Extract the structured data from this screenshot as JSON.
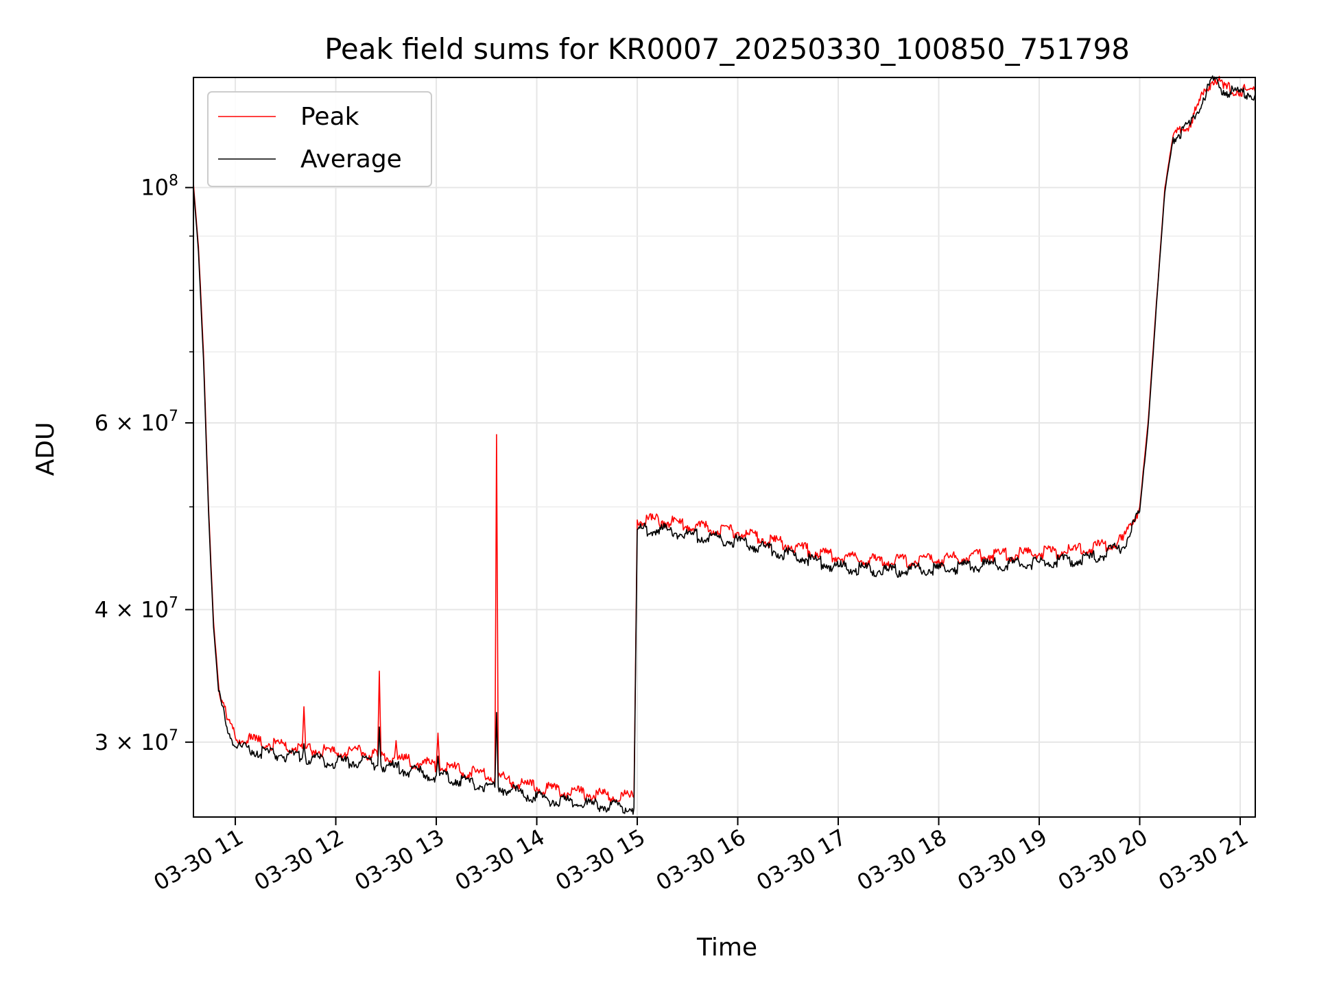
{
  "chart_data": {
    "type": "line",
    "title": "Peak field sums for KR0007_20250330_100850_751798",
    "xlabel": "Time",
    "ylabel": "ADU",
    "yscale": "log",
    "grid": true,
    "legend_position": "top-left",
    "xlim": [
      "03-30 10:35",
      "03-30 21:09"
    ],
    "ylim": [
      25500000,
      127000000
    ],
    "x_ticks": [
      "03-30 11",
      "03-30 12",
      "03-30 13",
      "03-30 14",
      "03-30 15",
      "03-30 16",
      "03-30 17",
      "03-30 18",
      "03-30 19",
      "03-30 20",
      "03-30 21"
    ],
    "y_ticks": [
      {
        "value": 30000000,
        "label": "3 × 10⁷",
        "mantissa": "3",
        "exp": "7"
      },
      {
        "value": 40000000,
        "label": "4 × 10⁷",
        "mantissa": "4",
        "exp": "7"
      },
      {
        "value": 60000000,
        "label": "6 × 10⁷",
        "mantissa": "6",
        "exp": "7"
      },
      {
        "value": 100000000,
        "label": "10⁸",
        "mantissa": "",
        "exp": "8"
      }
    ],
    "y_minor_ticks": [
      50000000,
      70000000,
      80000000,
      90000000
    ],
    "series": [
      {
        "name": "Peak",
        "color": "#ff0000",
        "points": [
          [
            "03-30 10:35",
            101000000
          ],
          [
            "03-30 10:38",
            88000000
          ],
          [
            "03-30 10:41",
            70000000
          ],
          [
            "03-30 10:44",
            50000000
          ],
          [
            "03-30 10:47",
            39000000
          ],
          [
            "03-30 10:50",
            34000000
          ],
          [
            "03-30 10:55",
            31500000
          ],
          [
            "03-30 11:00",
            30300000
          ],
          [
            "03-30 11:20",
            29900000
          ],
          [
            "03-30 11:40",
            29600000
          ],
          [
            "03-30 11:41",
            32400000
          ],
          [
            "03-30 11:42",
            29600000
          ],
          [
            "03-30 12:00",
            29300000
          ],
          [
            "03-30 12:15",
            29400000
          ],
          [
            "03-30 12:25",
            29100000
          ],
          [
            "03-30 12:26",
            35000000
          ],
          [
            "03-30 12:27",
            29100000
          ],
          [
            "03-30 12:35",
            29000000
          ],
          [
            "03-30 12:36",
            30100000
          ],
          [
            "03-30 12:37",
            28900000
          ],
          [
            "03-30 13:00",
            28500000
          ],
          [
            "03-30 13:01",
            30600000
          ],
          [
            "03-30 13:02",
            28500000
          ],
          [
            "03-30 13:20",
            28100000
          ],
          [
            "03-30 13:35",
            27800000
          ],
          [
            "03-30 13:36",
            58500000
          ],
          [
            "03-30 13:37",
            27800000
          ],
          [
            "03-30 14:00",
            27200000
          ],
          [
            "03-30 14:30",
            26800000
          ],
          [
            "03-30 14:58",
            26600000
          ],
          [
            "03-30 15:00",
            48600000
          ],
          [
            "03-30 15:15",
            48500000
          ],
          [
            "03-30 15:30",
            48000000
          ],
          [
            "03-30 16:00",
            47300000
          ],
          [
            "03-30 16:30",
            46000000
          ],
          [
            "03-30 17:00",
            44800000
          ],
          [
            "03-30 17:30",
            44400000
          ],
          [
            "03-30 18:00",
            44600000
          ],
          [
            "03-30 18:30",
            45000000
          ],
          [
            "03-30 19:00",
            45200000
          ],
          [
            "03-30 19:30",
            45600000
          ],
          [
            "03-30 19:50",
            46500000
          ],
          [
            "03-30 20:00",
            50000000
          ],
          [
            "03-30 20:05",
            60000000
          ],
          [
            "03-30 20:10",
            78000000
          ],
          [
            "03-30 20:15",
            100000000
          ],
          [
            "03-30 20:20",
            112000000
          ],
          [
            "03-30 20:30",
            115000000
          ],
          [
            "03-30 20:40",
            124000000
          ],
          [
            "03-30 20:45",
            127000000
          ],
          [
            "03-30 20:50",
            124000000
          ],
          [
            "03-30 21:00",
            123500000
          ],
          [
            "03-30 21:09",
            123000000
          ]
        ]
      },
      {
        "name": "Average",
        "color": "#000000",
        "points": [
          [
            "03-30 10:35",
            100000000
          ],
          [
            "03-30 10:38",
            87000000
          ],
          [
            "03-30 10:41",
            69000000
          ],
          [
            "03-30 10:44",
            49500000
          ],
          [
            "03-30 10:47",
            38500000
          ],
          [
            "03-30 10:50",
            33500000
          ],
          [
            "03-30 10:55",
            31000000
          ],
          [
            "03-30 11:00",
            29700000
          ],
          [
            "03-30 11:20",
            29300000
          ],
          [
            "03-30 11:40",
            29000000
          ],
          [
            "03-30 11:41",
            29900000
          ],
          [
            "03-30 11:42",
            29000000
          ],
          [
            "03-30 12:00",
            28700000
          ],
          [
            "03-30 12:15",
            28800000
          ],
          [
            "03-30 12:25",
            28500000
          ],
          [
            "03-30 12:26",
            31000000
          ],
          [
            "03-30 12:27",
            28500000
          ],
          [
            "03-30 12:35",
            28400000
          ],
          [
            "03-30 13:00",
            27900000
          ],
          [
            "03-30 13:01",
            29100000
          ],
          [
            "03-30 13:02",
            27900000
          ],
          [
            "03-30 13:20",
            27500000
          ],
          [
            "03-30 13:35",
            27200000
          ],
          [
            "03-30 13:36",
            32000000
          ],
          [
            "03-30 13:37",
            27200000
          ],
          [
            "03-30 14:00",
            26600000
          ],
          [
            "03-30 14:30",
            26200000
          ],
          [
            "03-30 14:58",
            26000000
          ],
          [
            "03-30 15:00",
            47600000
          ],
          [
            "03-30 15:15",
            47600000
          ],
          [
            "03-30 15:30",
            47100000
          ],
          [
            "03-30 16:00",
            46400000
          ],
          [
            "03-30 16:30",
            45100000
          ],
          [
            "03-30 17:00",
            43900000
          ],
          [
            "03-30 17:30",
            43500000
          ],
          [
            "03-30 18:00",
            43700000
          ],
          [
            "03-30 18:30",
            44100000
          ],
          [
            "03-30 19:00",
            44300000
          ],
          [
            "03-30 19:30",
            44700000
          ],
          [
            "03-30 19:50",
            45800000
          ],
          [
            "03-30 20:00",
            49500000
          ],
          [
            "03-30 20:05",
            59500000
          ],
          [
            "03-30 20:10",
            77500000
          ],
          [
            "03-30 20:15",
            99000000
          ],
          [
            "03-30 20:20",
            111500000
          ],
          [
            "03-30 20:30",
            114500000
          ],
          [
            "03-30 20:40",
            123500000
          ],
          [
            "03-30 20:45",
            126500000
          ],
          [
            "03-30 20:50",
            123500000
          ],
          [
            "03-30 21:00",
            123000000
          ],
          [
            "03-30 21:09",
            122500000
          ]
        ]
      }
    ]
  }
}
